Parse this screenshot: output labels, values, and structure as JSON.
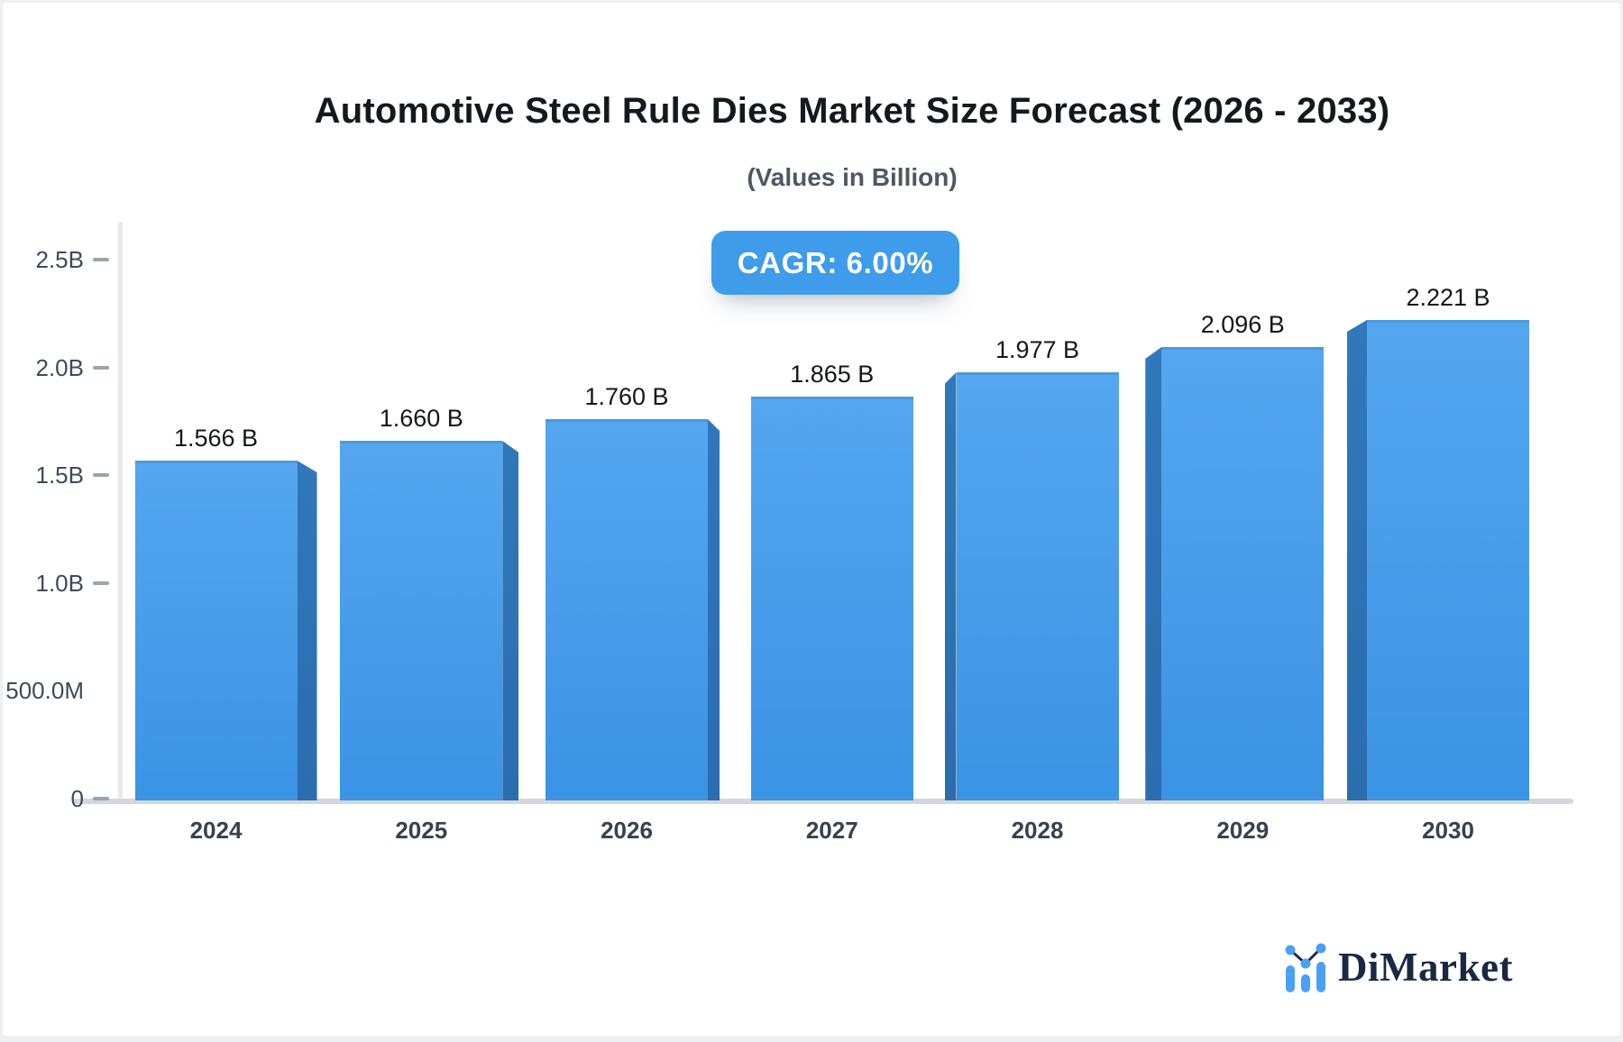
{
  "page": {
    "background": "#eef0f3",
    "card_background": "#ffffff"
  },
  "badge": {
    "label": "CAGR: 6.00%",
    "background": "#3e9cea",
    "text_color": "#ffffff"
  },
  "chart_data": {
    "type": "bar",
    "title": "Automotive Steel Rule Dies Market Size Forecast (2026 - 2033)",
    "subtitle": "(Values in Billion)",
    "categories": [
      "2024",
      "2025",
      "2026",
      "2027",
      "2028",
      "2029",
      "2030"
    ],
    "values": [
      1.566,
      1.66,
      1.76,
      1.865,
      1.977,
      2.096,
      2.221
    ],
    "value_labels": [
      "1.566 B",
      "1.660 B",
      "1.760 B",
      "1.865 B",
      "1.977 B",
      "2.096 B",
      "2.221 B"
    ],
    "ylim": [
      0,
      2.5
    ],
    "yticks": [
      {
        "label": "0",
        "value": 0,
        "dash": true
      },
      {
        "label": "500.0M",
        "value": 0.5,
        "dash": false
      },
      {
        "label": "1.0B",
        "value": 1.0,
        "dash": true
      },
      {
        "label": "1.5B",
        "value": 1.5,
        "dash": true
      },
      {
        "label": "2.0B",
        "value": 2.0,
        "dash": true
      },
      {
        "label": "2.5B",
        "value": 2.5,
        "dash": true
      }
    ],
    "grid": false,
    "legend": false,
    "bar_style": "3d-box",
    "colors": {
      "bar_face_top": "#54a6ef",
      "bar_face_bottom": "#3b93e5",
      "bar_side": "#2e74b6",
      "bar_top_edge": "#4d9ada",
      "axis_line": "#e7e9ed",
      "baseline": "#d3d7dd"
    }
  },
  "branding": {
    "logo_text": "DiMarket",
    "logo_icon": "mini-bar-line-chart-icon",
    "logo_text_color": "#182943",
    "logo_accent": "#4aa0f2"
  }
}
